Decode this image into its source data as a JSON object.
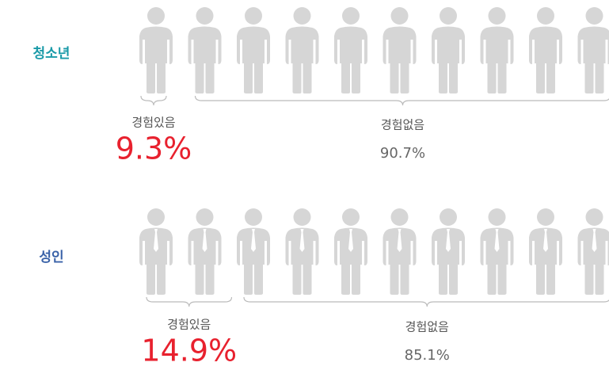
{
  "chart_data": {
    "type": "pictogram",
    "categories": [
      "청소년",
      "성인"
    ],
    "colors": [
      "#1a9aa8",
      "#3a62a8"
    ],
    "icon_color": "#d6d6d6",
    "value_color": "#e8212e",
    "series": [
      {
        "name": "경험있음",
        "values": [
          9.3,
          14.9
        ],
        "value_labels": [
          "9.3%",
          "14.9%"
        ]
      },
      {
        "name": "경험없음",
        "values": [
          90.7,
          85.1
        ],
        "value_labels": [
          "90.7%",
          "85.1%"
        ]
      }
    ]
  }
}
